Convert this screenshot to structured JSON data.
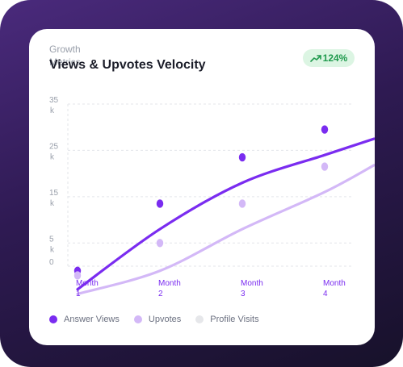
{
  "header": {
    "eyebrow": "Growth Metrics",
    "title": "Views & Upvotes Velocity",
    "badge": "124%",
    "badge_icon": "trend-up-icon"
  },
  "colors": {
    "answer_views": "#7a2cf0",
    "upvotes": "#d3b8f7",
    "profile_visits": "#e6e7ea",
    "badge_bg": "#dcf5e3",
    "badge_text": "#1f9a4d"
  },
  "chart_data": {
    "type": "line",
    "x": [
      "Month 1",
      "Month 2",
      "Month 3",
      "Month 4"
    ],
    "y_ticks": [
      {
        "value": 35000,
        "label": "35 k"
      },
      {
        "value": 25000,
        "label": "25 k"
      },
      {
        "value": 15000,
        "label": "15 k"
      },
      {
        "value": 5000,
        "label": "5 k"
      },
      {
        "value": 0,
        "label": "0"
      }
    ],
    "ylim": [
      0,
      35000
    ],
    "grid": true,
    "legend": "bottom-left",
    "series": [
      {
        "name": "Answer Views",
        "color": "#7a2cf0",
        "points": [
          -1000,
          13500,
          23500,
          29500
        ],
        "trend": [
          [
            0,
            -5000
          ],
          [
            1,
            8000
          ],
          [
            2,
            18000
          ],
          [
            3,
            24000
          ],
          [
            3.6,
            27500
          ]
        ]
      },
      {
        "name": "Upvotes",
        "color": "#d3b8f7",
        "points": [
          -2000,
          5000,
          13500,
          21500
        ],
        "trend": [
          [
            0,
            -6000
          ],
          [
            1,
            -1000
          ],
          [
            2,
            8000
          ],
          [
            3,
            16000
          ],
          [
            3.6,
            21800
          ]
        ]
      },
      {
        "name": "Profile Visits",
        "color": "#e6e7ea",
        "points": [],
        "trend": []
      }
    ]
  }
}
